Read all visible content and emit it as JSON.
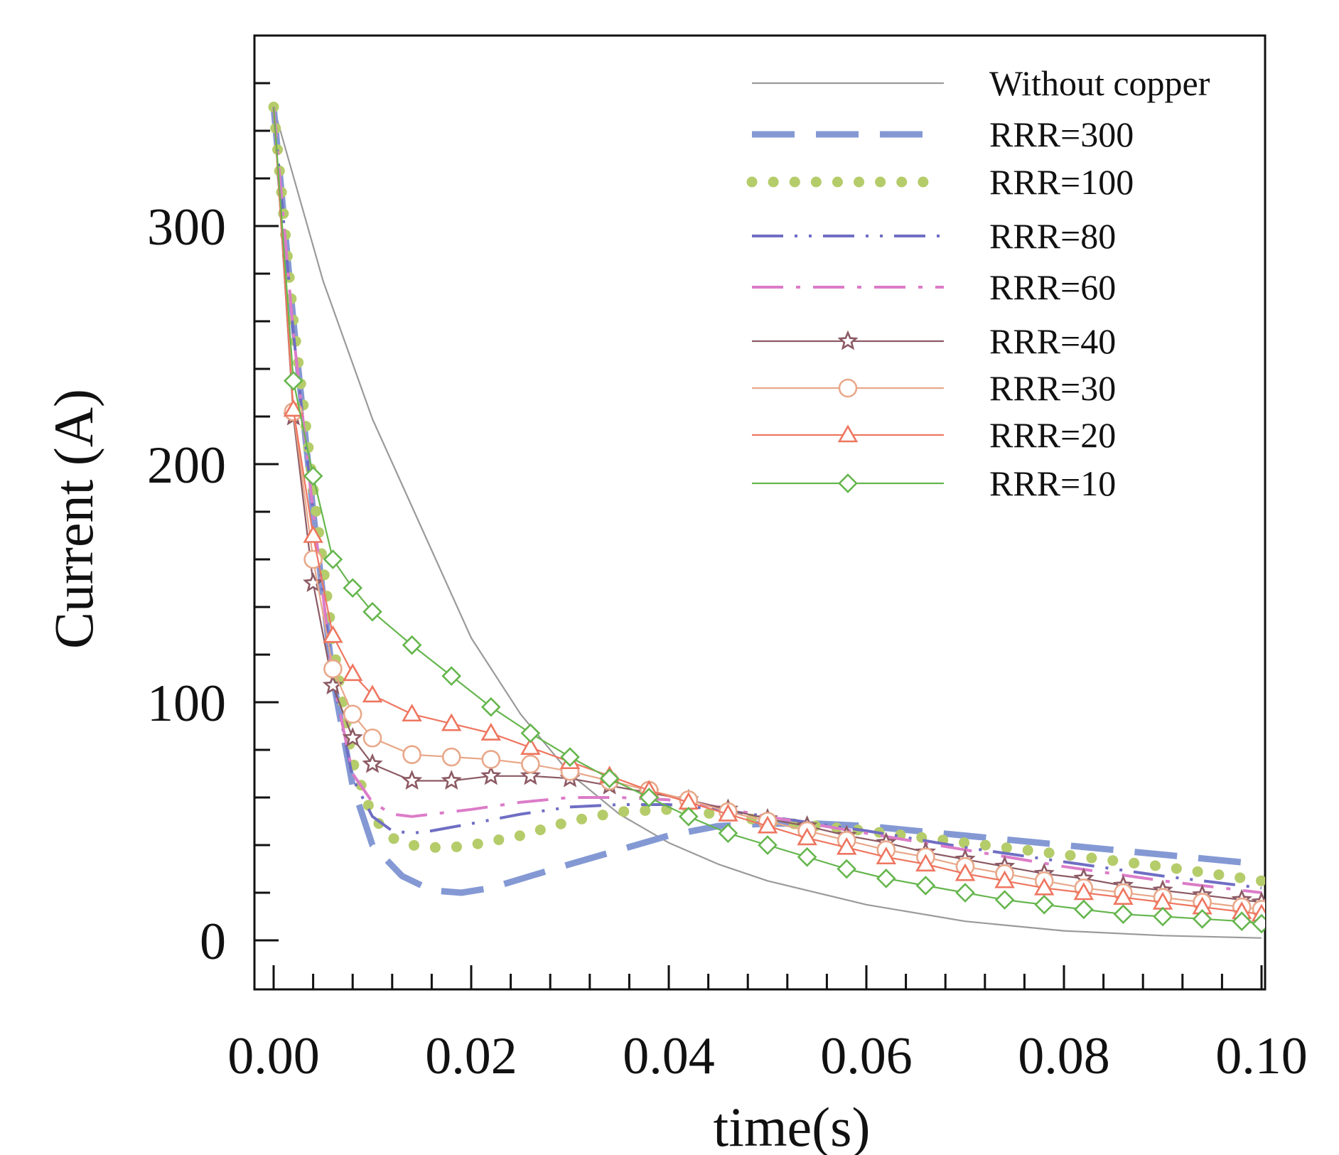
{
  "chart_data": {
    "type": "line",
    "title": "",
    "xlabel": "time(s)",
    "ylabel": "Current (A)",
    "xlim": [
      0,
      0.1
    ],
    "ylim": [
      -20,
      380
    ],
    "xticks": [
      0.0,
      0.02,
      0.04,
      0.06,
      0.08,
      0.1
    ],
    "xtick_labels": [
      "0.00",
      "0.02",
      "0.04",
      "0.06",
      "0.08",
      "0.10"
    ],
    "yticks": [
      0,
      100,
      200,
      300
    ],
    "ytick_labels": [
      "0",
      "100",
      "200",
      "300"
    ],
    "grid": false,
    "legend_position": "top-right",
    "series": [
      {
        "name": "Without copper",
        "color": "#9a9a9a",
        "style": "solid",
        "marker": "none",
        "x": [
          0,
          0.005,
          0.01,
          0.015,
          0.02,
          0.025,
          0.03,
          0.035,
          0.04,
          0.045,
          0.05,
          0.06,
          0.07,
          0.08,
          0.09,
          0.1
        ],
        "y": [
          350,
          277,
          219,
          173,
          127,
          95,
          70,
          53,
          41,
          32,
          25,
          15,
          8,
          4,
          2,
          1
        ]
      },
      {
        "name": "RRR=300",
        "color": "#8499d4",
        "style": "dashed",
        "marker": "none",
        "x": [
          0,
          0.002,
          0.004,
          0.006,
          0.008,
          0.01,
          0.013,
          0.016,
          0.019,
          0.022,
          0.026,
          0.03,
          0.035,
          0.04,
          0.045,
          0.05,
          0.055,
          0.06,
          0.07,
          0.08,
          0.09,
          0.1
        ],
        "y": [
          350,
          260,
          180,
          110,
          65,
          40,
          27,
          21,
          20,
          22,
          27,
          32,
          38,
          44,
          48,
          49,
          49,
          48,
          44,
          40,
          36,
          32
        ]
      },
      {
        "name": "RRR=100",
        "color": "#b5cc6a",
        "style": "dotted",
        "marker": "none",
        "x": [
          0,
          0.002,
          0.004,
          0.006,
          0.008,
          0.01,
          0.012,
          0.014,
          0.016,
          0.018,
          0.02,
          0.025,
          0.03,
          0.035,
          0.04,
          0.045,
          0.05,
          0.06,
          0.07,
          0.08,
          0.09,
          0.1
        ],
        "y": [
          350,
          260,
          190,
          125,
          75,
          52,
          43,
          40,
          39,
          39,
          40,
          44,
          50,
          54,
          55,
          53,
          50,
          46,
          41,
          36,
          31,
          25
        ]
      },
      {
        "name": "RRR=80",
        "color": "#6f6ec4",
        "style": "dashdotdot",
        "marker": "none",
        "x": [
          0,
          0.002,
          0.004,
          0.006,
          0.008,
          0.01,
          0.012,
          0.014,
          0.016,
          0.02,
          0.025,
          0.03,
          0.035,
          0.04,
          0.045,
          0.05,
          0.06,
          0.07,
          0.08,
          0.09,
          0.1
        ],
        "y": [
          350,
          255,
          180,
          110,
          68,
          52,
          46,
          45,
          46,
          49,
          53,
          56,
          57,
          57,
          55,
          52,
          46,
          39,
          33,
          27,
          22
        ]
      },
      {
        "name": "RRR=60",
        "color": "#dc7cc8",
        "style": "dashdot",
        "marker": "none",
        "x": [
          0,
          0.002,
          0.004,
          0.006,
          0.008,
          0.01,
          0.012,
          0.014,
          0.016,
          0.02,
          0.025,
          0.03,
          0.035,
          0.04,
          0.045,
          0.05,
          0.06,
          0.07,
          0.08,
          0.09,
          0.1
        ],
        "y": [
          350,
          255,
          180,
          110,
          70,
          58,
          53,
          52,
          53,
          55,
          58,
          60,
          60,
          59,
          56,
          52,
          45,
          38,
          31,
          25,
          20
        ]
      },
      {
        "name": "RRR=40",
        "color": "#8c5a64",
        "style": "solid",
        "marker": "star",
        "x": [
          0,
          0.002,
          0.004,
          0.006,
          0.008,
          0.01,
          0.014,
          0.018,
          0.022,
          0.026,
          0.03,
          0.034,
          0.038,
          0.042,
          0.046,
          0.05,
          0.054,
          0.058,
          0.062,
          0.066,
          0.07,
          0.074,
          0.078,
          0.082,
          0.086,
          0.09,
          0.094,
          0.098,
          0.1
        ],
        "y": [
          350,
          220,
          150,
          107,
          85,
          74,
          67,
          67,
          69,
          69,
          68,
          65,
          62,
          59,
          55,
          51,
          48,
          44,
          41,
          37,
          34,
          31,
          28,
          26,
          23,
          21,
          19,
          17,
          16
        ]
      },
      {
        "name": "RRR=30",
        "color": "#e8a88a",
        "style": "solid",
        "marker": "circle",
        "x": [
          0,
          0.002,
          0.004,
          0.006,
          0.008,
          0.01,
          0.014,
          0.018,
          0.022,
          0.026,
          0.03,
          0.034,
          0.038,
          0.042,
          0.046,
          0.05,
          0.054,
          0.058,
          0.062,
          0.066,
          0.07,
          0.074,
          0.078,
          0.082,
          0.086,
          0.09,
          0.094,
          0.098,
          0.1
        ],
        "y": [
          350,
          222,
          160,
          114,
          95,
          85,
          78,
          77,
          76,
          74,
          71,
          67,
          63,
          59,
          54,
          50,
          46,
          42,
          38,
          35,
          31,
          28,
          25,
          22,
          20,
          18,
          16,
          14,
          13
        ]
      },
      {
        "name": "RRR=20",
        "color": "#ee7660",
        "style": "solid",
        "marker": "triangle",
        "x": [
          0,
          0.002,
          0.004,
          0.006,
          0.008,
          0.01,
          0.014,
          0.018,
          0.022,
          0.026,
          0.03,
          0.034,
          0.038,
          0.042,
          0.046,
          0.05,
          0.054,
          0.058,
          0.062,
          0.066,
          0.07,
          0.074,
          0.078,
          0.082,
          0.086,
          0.09,
          0.094,
          0.098,
          0.1
        ],
        "y": [
          350,
          223,
          170,
          128,
          112,
          103,
          95,
          91,
          87,
          81,
          75,
          69,
          63,
          58,
          53,
          48,
          43,
          39,
          35,
          32,
          28,
          25,
          22,
          20,
          18,
          16,
          14,
          12,
          11
        ]
      },
      {
        "name": "RRR=10",
        "color": "#66b64e",
        "style": "solid",
        "marker": "diamond",
        "x": [
          0,
          0.002,
          0.004,
          0.006,
          0.008,
          0.01,
          0.014,
          0.018,
          0.022,
          0.026,
          0.03,
          0.034,
          0.038,
          0.042,
          0.046,
          0.05,
          0.054,
          0.058,
          0.062,
          0.066,
          0.07,
          0.074,
          0.078,
          0.082,
          0.086,
          0.09,
          0.094,
          0.098,
          0.1
        ],
        "y": [
          350,
          235,
          195,
          160,
          148,
          138,
          124,
          111,
          98,
          87,
          77,
          68,
          60,
          52,
          45,
          40,
          35,
          30,
          26,
          23,
          20,
          17,
          15,
          13,
          11,
          10,
          9,
          8,
          7
        ]
      }
    ]
  }
}
